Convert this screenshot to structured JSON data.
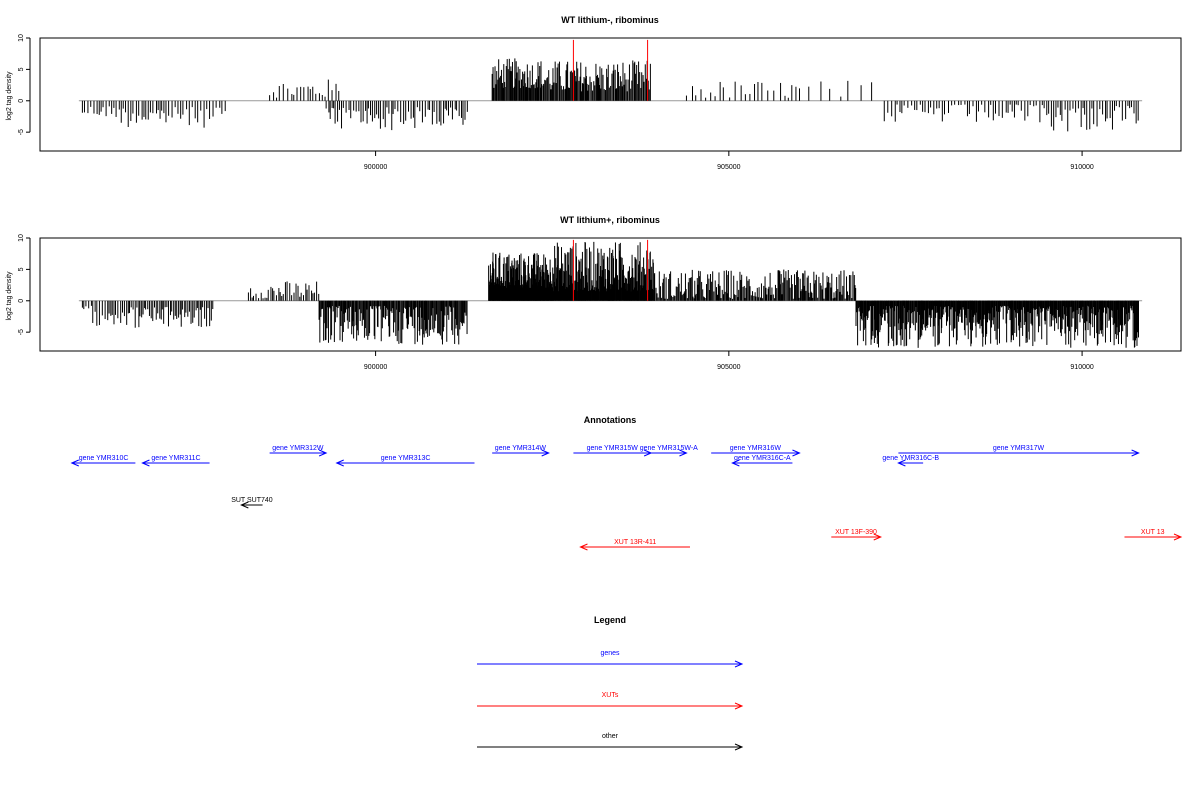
{
  "chart_data": [
    {
      "type": "bar",
      "title": "WT lithium-, ribominus",
      "ylabel": "log2 tag density",
      "xlabel": "",
      "xlim": [
        895250,
        911400
      ],
      "ylim": [
        -8,
        10
      ],
      "xticks": [
        900000,
        905000,
        910000
      ],
      "yticks": [
        -5,
        0,
        5,
        10
      ],
      "yticklabels": [
        "-5",
        "0",
        "5",
        "10"
      ],
      "grid": false,
      "markers": [
        902800,
        903850
      ],
      "marker_color": "#ff0000",
      "marker_height": 9.7,
      "segments": [
        {
          "start": 895850,
          "end": 896400,
          "sign": -1,
          "min": 0.8,
          "max": 2.8,
          "step": 35
        },
        {
          "start": 896400,
          "end": 897900,
          "sign": -1,
          "min": 1.0,
          "max": 4.3,
          "step": 38
        },
        {
          "start": 898500,
          "end": 899500,
          "sign": 1,
          "min": 0.5,
          "max": 3.5,
          "step": 45
        },
        {
          "start": 899300,
          "end": 901300,
          "sign": -1,
          "min": 1.0,
          "max": 4.8,
          "step": 30
        },
        {
          "start": 901650,
          "end": 902350,
          "sign": 1,
          "min": 2.0,
          "max": 6.8,
          "step": 12
        },
        {
          "start": 902350,
          "end": 903900,
          "sign": 1,
          "min": 1.5,
          "max": 6.5,
          "step": 14
        },
        {
          "start": 904400,
          "end": 906000,
          "sign": 1,
          "min": 0.4,
          "max": 3.3,
          "step": 70
        },
        {
          "start": 906000,
          "end": 907200,
          "sign": 1,
          "min": 0.3,
          "max": 3.3,
          "step": 160
        },
        {
          "start": 907200,
          "end": 909500,
          "sign": -1,
          "min": 0.6,
          "max": 3.8,
          "step": 42
        },
        {
          "start": 909500,
          "end": 910800,
          "sign": -1,
          "min": 0.8,
          "max": 5.0,
          "step": 35
        }
      ]
    },
    {
      "type": "bar",
      "title": "WT lithium+, ribominus",
      "ylabel": "log2 tag density",
      "xlabel": "",
      "xlim": [
        895250,
        911400
      ],
      "ylim": [
        -8,
        10
      ],
      "xticks": [
        900000,
        905000,
        910000
      ],
      "yticks": [
        -5,
        0,
        5,
        10
      ],
      "yticklabels": [
        "-5",
        "0",
        "5",
        "10"
      ],
      "grid": false,
      "markers": [
        902800,
        903850
      ],
      "marker_color": "#ff0000",
      "marker_height": 9.7,
      "segments": [
        {
          "start": 895850,
          "end": 896500,
          "sign": -1,
          "min": 0.8,
          "max": 4.0,
          "step": 30
        },
        {
          "start": 896500,
          "end": 897700,
          "sign": -1,
          "min": 1.0,
          "max": 4.5,
          "step": 22
        },
        {
          "start": 898200,
          "end": 899200,
          "sign": 1,
          "min": 0.4,
          "max": 3.2,
          "step": 28
        },
        {
          "start": 899200,
          "end": 901300,
          "sign": -1,
          "min": 0.8,
          "max": 7.0,
          "step": 12
        },
        {
          "start": 901600,
          "end": 902500,
          "sign": 1,
          "min": 2.0,
          "max": 7.8,
          "step": 6
        },
        {
          "start": 902500,
          "end": 903950,
          "sign": 1,
          "min": 1.5,
          "max": 9.5,
          "step": 7
        },
        {
          "start": 903950,
          "end": 906800,
          "sign": 1,
          "min": 0.3,
          "max": 5.0,
          "step": 14
        },
        {
          "start": 906800,
          "end": 910800,
          "sign": -1,
          "min": 0.8,
          "max": 7.5,
          "step": 9
        }
      ]
    }
  ],
  "annotations": {
    "title": "Annotations",
    "items": [
      {
        "label": "gene YMR310C",
        "x1": 895700,
        "x2": 896600,
        "dir": -1,
        "row": 0,
        "color": "#0000ff"
      },
      {
        "label": "gene YMR311C",
        "x1": 896700,
        "x2": 897650,
        "dir": -1,
        "row": 0,
        "color": "#0000ff"
      },
      {
        "label": "gene YMR312W",
        "x1": 898500,
        "x2": 899300,
        "dir": 1,
        "row": -1,
        "color": "#0000ff"
      },
      {
        "label": "gene YMR313C",
        "x1": 899450,
        "x2": 901400,
        "dir": -1,
        "row": 0,
        "color": "#0000ff"
      },
      {
        "label": "gene YMR314W",
        "x1": 901650,
        "x2": 902450,
        "dir": 1,
        "row": -1,
        "color": "#0000ff"
      },
      {
        "label": "gene YMR315W",
        "x1": 902800,
        "x2": 903900,
        "dir": 1,
        "row": -1,
        "color": "#0000ff"
      },
      {
        "label": "gene YMR315W-A",
        "x1": 903900,
        "x2": 904400,
        "dir": 1,
        "row": -1,
        "color": "#0000ff"
      },
      {
        "label": "gene YMR316W",
        "x1": 904750,
        "x2": 906000,
        "dir": 1,
        "row": -1,
        "color": "#0000ff"
      },
      {
        "label": "gene YMR316C-A",
        "x1": 905050,
        "x2": 905900,
        "dir": -1,
        "row": 0,
        "color": "#0000ff"
      },
      {
        "label": "gene YMR316C-B",
        "x1": 907400,
        "x2": 907750,
        "dir": -1,
        "row": 0,
        "color": "#0000ff"
      },
      {
        "label": "gene YMR317W",
        "x1": 907400,
        "x2": 910800,
        "dir": 1,
        "row": -1,
        "color": "#0000ff"
      },
      {
        "label": "SUT SUT740",
        "x1": 898100,
        "x2": 898400,
        "dir": -1,
        "row": 1,
        "color": "#000000"
      },
      {
        "label": "XUT 13R-411",
        "x1": 902900,
        "x2": 904450,
        "dir": -1,
        "row": 3,
        "color": "#ff0000"
      },
      {
        "label": "XUT 13F-390",
        "x1": 906450,
        "x2": 907150,
        "dir": 1,
        "row": 2,
        "color": "#ff0000"
      },
      {
        "label": "XUT 13",
        "x1": 910600,
        "x2": 911400,
        "dir": 1,
        "row": 2,
        "color": "#ff0000"
      }
    ]
  },
  "legend": {
    "title": "Legend",
    "items": [
      {
        "label": "genes",
        "color": "#0000ff"
      },
      {
        "label": "XUTs",
        "color": "#ff0000"
      },
      {
        "label": "other",
        "color": "#000000"
      }
    ]
  }
}
